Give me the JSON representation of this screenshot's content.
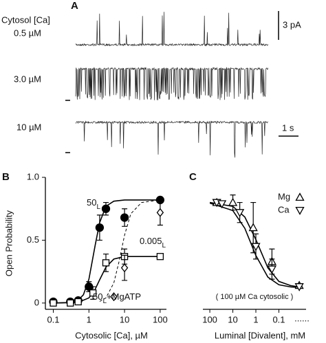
{
  "panel_a": {
    "label": "A",
    "header": "Cytosol [Ca]",
    "traces": [
      "0.5 µM",
      "3.0 µM",
      "10 µM"
    ],
    "current_scale": "3 pA",
    "time_scale": "1 s"
  },
  "chart_data": [
    {
      "type": "scatter",
      "label": "B",
      "x_label": "Cytosolic [Ca],  µM",
      "y_label": "Open Probability",
      "xscale": "log",
      "xlim": [
        0.06,
        150
      ],
      "ylim": [
        -0.05,
        1
      ],
      "xticks": [
        0.1,
        1,
        10,
        100
      ],
      "yticks": [
        0,
        0.5,
        {
          "value": 1,
          "label": "1.0"
        }
      ],
      "series": [
        {
          "marker": "circle-filled",
          "color": "#000000",
          "x": [
            0.1,
            0.3,
            0.5,
            1,
            2,
            3,
            10,
            100
          ],
          "values": [
            0.01,
            0.01,
            0.02,
            0.13,
            0.6,
            0.75,
            0.68,
            0.82
          ],
          "errors": [
            null,
            null,
            null,
            0.04,
            0.1,
            0.05,
            0.07,
            null
          ]
        },
        {
          "marker": "square",
          "color": "#000000",
          "x": [
            0.1,
            0.3,
            0.5,
            1.3,
            3,
            10,
            100
          ],
          "values": [
            0,
            0,
            0.01,
            0.08,
            0.32,
            0.37,
            0.37
          ],
          "errors": [
            null,
            null,
            null,
            0.05,
            0.07,
            0.06,
            null
          ]
        },
        {
          "marker": "diamond",
          "color": "#000000",
          "x": [
            5,
            10,
            100
          ],
          "values": [
            0.05,
            0.28,
            0.72
          ],
          "errors": [
            null,
            0.1,
            0.1
          ]
        }
      ],
      "fits": [
        {
          "line": "solid",
          "x": [
            0.1,
            0.3,
            0.5,
            0.7,
            1,
            1.5,
            2,
            3,
            5,
            10,
            100
          ],
          "values": [
            0,
            0.004,
            0.022,
            0.066,
            0.19,
            0.46,
            0.64,
            0.77,
            0.81,
            0.82,
            0.82
          ]
        },
        {
          "line": "solid",
          "x": [
            0.1,
            0.5,
            1,
            1.5,
            2,
            3,
            5,
            10,
            100
          ],
          "values": [
            0,
            0.006,
            0.041,
            0.11,
            0.185,
            0.285,
            0.35,
            0.37,
            0.37
          ]
        },
        {
          "line": "dashed",
          "x": [
            2,
            3,
            5,
            7,
            10,
            15,
            30,
            100
          ],
          "values": [
            0.013,
            0.041,
            0.16,
            0.33,
            0.54,
            0.71,
            0.8,
            0.82
          ]
        }
      ],
      "annotations": [
        {
          "text": "50",
          "sub": "L"
        },
        {
          "text": "0.005",
          "sub": "L"
        },
        {
          "text": "50",
          "sub": "L",
          "suffix": "+MgATP"
        }
      ]
    },
    {
      "type": "scatter",
      "label": "C",
      "x_label": "Luminal [Divalent],   mM",
      "note": "( 100 µM Ca cytosolic )",
      "axis_end": "......",
      "xscale": "log",
      "xlim": [
        200,
        0.0066
      ],
      "ylim": [
        -0.05,
        1
      ],
      "xticks": [
        100,
        10,
        1,
        0.1
      ],
      "series": [
        {
          "name": "Mg",
          "marker": "triangle-up",
          "color": "#000000",
          "x": [
            50,
            10,
            1.3,
            0.2,
            0.013
          ],
          "values": [
            0.8,
            0.8,
            0.6,
            0.33,
            0.14
          ],
          "errors": [
            null,
            0.06,
            0.2,
            0.1,
            null
          ]
        },
        {
          "name": "Ca",
          "marker": "triangle-down",
          "color": "#000000",
          "x": [
            50,
            30,
            5,
            1,
            0.2,
            0.013
          ],
          "values": [
            0.8,
            0.79,
            0.72,
            0.45,
            0.27,
            0.13
          ],
          "errors": [
            null,
            null,
            0.08,
            0.1,
            0.08,
            null
          ]
        }
      ],
      "fits": [
        {
          "line": "solid",
          "x": [
            100,
            10,
            3,
            1,
            0.3,
            0.1,
            0.03,
            0.01
          ],
          "values": [
            0.8,
            0.769,
            0.684,
            0.505,
            0.28,
            0.172,
            0.138,
            0.125
          ]
        },
        {
          "line": "solid",
          "x": [
            100,
            10,
            3,
            1,
            0.3,
            0.1,
            0.03,
            0.01
          ],
          "values": [
            0.795,
            0.736,
            0.594,
            0.379,
            0.206,
            0.145,
            0.128,
            0.122
          ]
        }
      ]
    }
  ]
}
